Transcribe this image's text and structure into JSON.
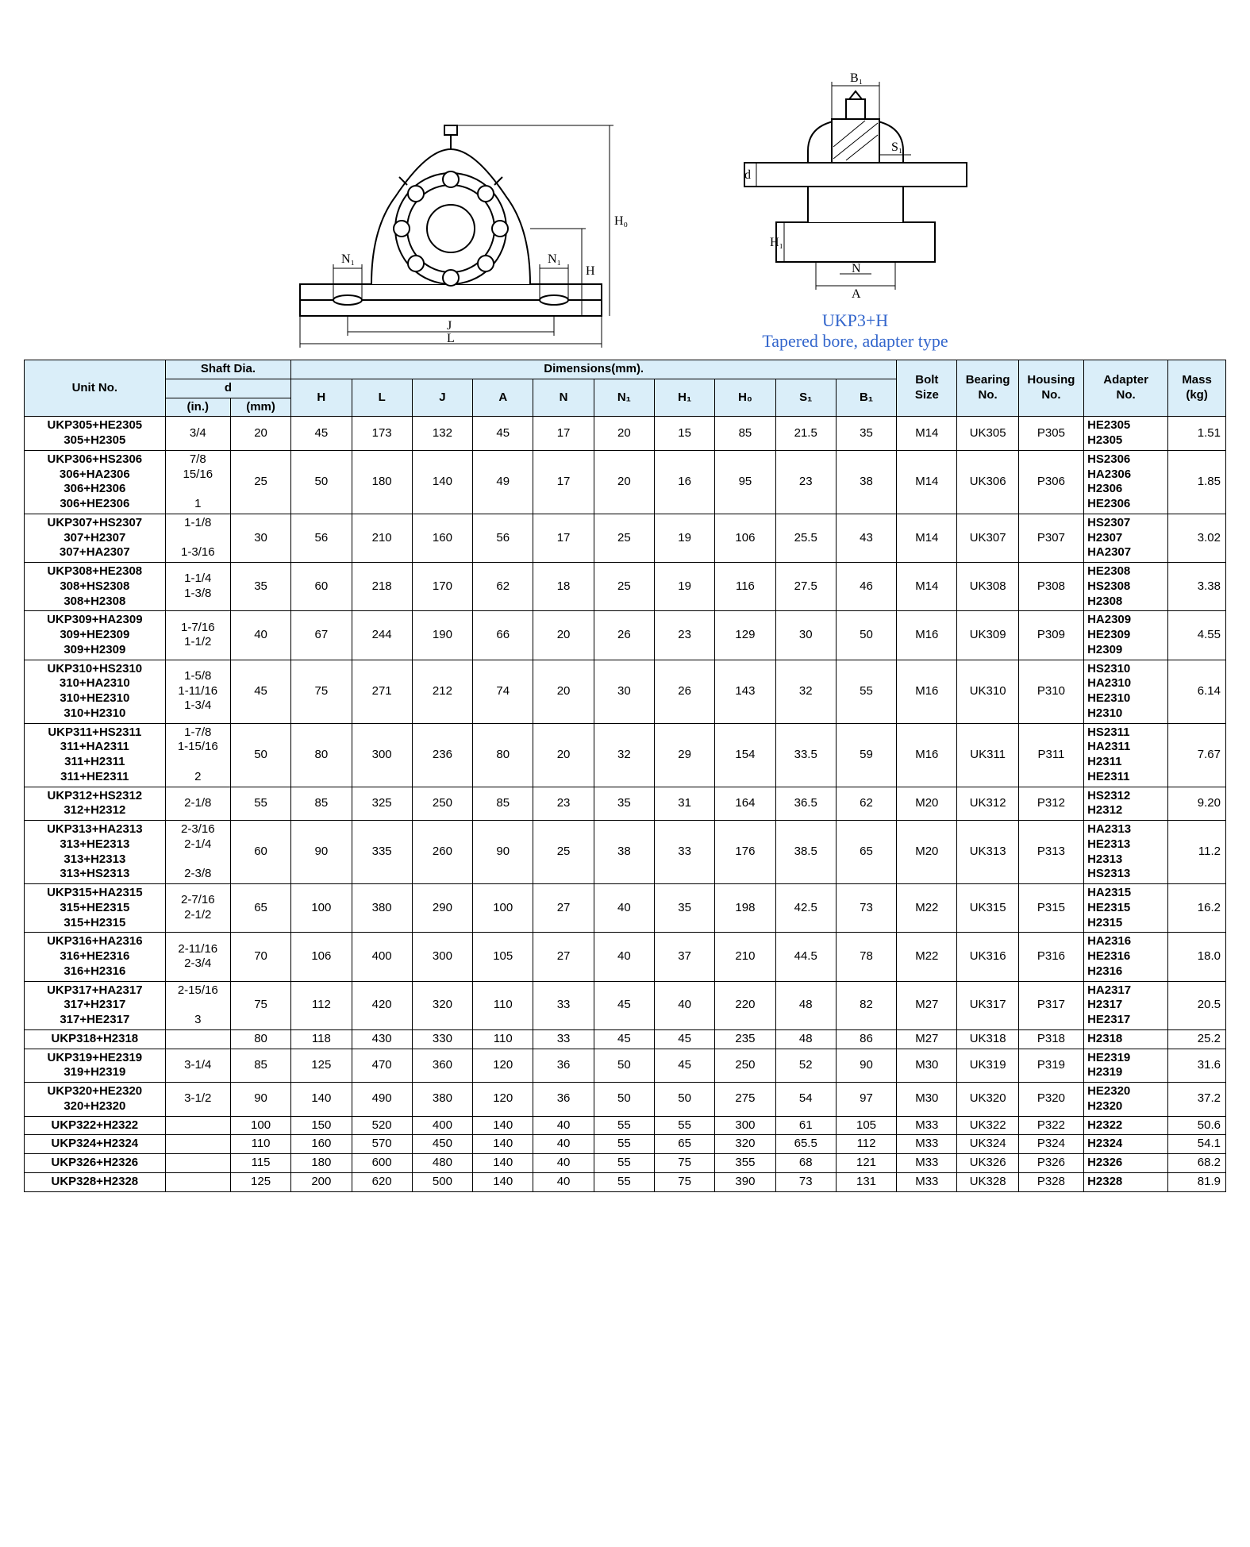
{
  "caption_line1": "UKP3+H",
  "caption_line2": "Tapered bore, adapter type",
  "caption_color": "#3366cc",
  "header_bg": "#daeef9",
  "headers": {
    "unit": "Unit No.",
    "shaft": "Shaft Dia.",
    "d": "d",
    "in": "(in.)",
    "mm": "(mm)",
    "dims": "Dimensions(mm).",
    "H": "H",
    "L": "L",
    "J": "J",
    "A": "A",
    "N": "N",
    "N1": "N₁",
    "H1": "H₁",
    "Ho": "H₀",
    "S1": "S₁",
    "B1": "B₁",
    "bolt": "Bolt\nSize",
    "bearing": "Bearing\nNo.",
    "housing": "Housing\nNo.",
    "adapter": "Adapter\nNo.",
    "mass": "Mass\n(kg)"
  },
  "rows": [
    {
      "unit": "UKP305+HE2305\n305+H2305",
      "in": "3/4",
      "mm": "20",
      "H": "45",
      "L": "173",
      "J": "132",
      "A": "45",
      "N": "17",
      "N1": "20",
      "H1": "15",
      "Ho": "85",
      "S1": "21.5",
      "B1": "35",
      "bolt": "M14",
      "bearing": "UK305",
      "housing": "P305",
      "adapter": "HE2305\nH2305",
      "mass": "1.51"
    },
    {
      "unit": "UKP306+HS2306\n306+HA2306\n306+H2306\n306+HE2306",
      "in": "7/8\n15/16\n\n1",
      "mm": "25",
      "H": "50",
      "L": "180",
      "J": "140",
      "A": "49",
      "N": "17",
      "N1": "20",
      "H1": "16",
      "Ho": "95",
      "S1": "23",
      "B1": "38",
      "bolt": "M14",
      "bearing": "UK306",
      "housing": "P306",
      "adapter": "HS2306\nHA2306\nH2306\nHE2306",
      "mass": "1.85"
    },
    {
      "unit": "UKP307+HS2307\n307+H2307\n307+HA2307",
      "in": "1-1/8\n\n1-3/16",
      "mm": "30",
      "H": "56",
      "L": "210",
      "J": "160",
      "A": "56",
      "N": "17",
      "N1": "25",
      "H1": "19",
      "Ho": "106",
      "S1": "25.5",
      "B1": "43",
      "bolt": "M14",
      "bearing": "UK307",
      "housing": "P307",
      "adapter": "HS2307\nH2307\nHA2307",
      "mass": "3.02"
    },
    {
      "unit": "UKP308+HE2308\n308+HS2308\n308+H2308",
      "in": "1-1/4\n1-3/8",
      "mm": "35",
      "H": "60",
      "L": "218",
      "J": "170",
      "A": "62",
      "N": "18",
      "N1": "25",
      "H1": "19",
      "Ho": "116",
      "S1": "27.5",
      "B1": "46",
      "bolt": "M14",
      "bearing": "UK308",
      "housing": "P308",
      "adapter": "HE2308\nHS2308\nH2308",
      "mass": "3.38"
    },
    {
      "unit": "UKP309+HA2309\n309+HE2309\n309+H2309",
      "in": "1-7/16\n1-1/2",
      "mm": "40",
      "H": "67",
      "L": "244",
      "J": "190",
      "A": "66",
      "N": "20",
      "N1": "26",
      "H1": "23",
      "Ho": "129",
      "S1": "30",
      "B1": "50",
      "bolt": "M16",
      "bearing": "UK309",
      "housing": "P309",
      "adapter": "HA2309\nHE2309\nH2309",
      "mass": "4.55"
    },
    {
      "unit": "UKP310+HS2310\n310+HA2310\n310+HE2310\n310+H2310",
      "in": "1-5/8\n1-11/16\n1-3/4",
      "mm": "45",
      "H": "75",
      "L": "271",
      "J": "212",
      "A": "74",
      "N": "20",
      "N1": "30",
      "H1": "26",
      "Ho": "143",
      "S1": "32",
      "B1": "55",
      "bolt": "M16",
      "bearing": "UK310",
      "housing": "P310",
      "adapter": "HS2310\nHA2310\nHE2310\nH2310",
      "mass": "6.14"
    },
    {
      "unit": "UKP311+HS2311\n311+HA2311\n311+H2311\n311+HE2311",
      "in": "1-7/8\n1-15/16\n\n2",
      "mm": "50",
      "H": "80",
      "L": "300",
      "J": "236",
      "A": "80",
      "N": "20",
      "N1": "32",
      "H1": "29",
      "Ho": "154",
      "S1": "33.5",
      "B1": "59",
      "bolt": "M16",
      "bearing": "UK311",
      "housing": "P311",
      "adapter": "HS2311\nHA2311\nH2311\nHE2311",
      "mass": "7.67"
    },
    {
      "unit": "UKP312+HS2312\n312+H2312",
      "in": "2-1/8",
      "mm": "55",
      "H": "85",
      "L": "325",
      "J": "250",
      "A": "85",
      "N": "23",
      "N1": "35",
      "H1": "31",
      "Ho": "164",
      "S1": "36.5",
      "B1": "62",
      "bolt": "M20",
      "bearing": "UK312",
      "housing": "P312",
      "adapter": "HS2312\nH2312",
      "mass": "9.20"
    },
    {
      "unit": "UKP313+HA2313\n313+HE2313\n313+H2313\n313+HS2313",
      "in": "2-3/16\n2-1/4\n\n2-3/8",
      "mm": "60",
      "H": "90",
      "L": "335",
      "J": "260",
      "A": "90",
      "N": "25",
      "N1": "38",
      "H1": "33",
      "Ho": "176",
      "S1": "38.5",
      "B1": "65",
      "bolt": "M20",
      "bearing": "UK313",
      "housing": "P313",
      "adapter": "HA2313\nHE2313\nH2313\nHS2313",
      "mass": "11.2"
    },
    {
      "unit": "UKP315+HA2315\n315+HE2315\n315+H2315",
      "in": "2-7/16\n2-1/2",
      "mm": "65",
      "H": "100",
      "L": "380",
      "J": "290",
      "A": "100",
      "N": "27",
      "N1": "40",
      "H1": "35",
      "Ho": "198",
      "S1": "42.5",
      "B1": "73",
      "bolt": "M22",
      "bearing": "UK315",
      "housing": "P315",
      "adapter": "HA2315\nHE2315\nH2315",
      "mass": "16.2"
    },
    {
      "unit": "UKP316+HA2316\n316+HE2316\n316+H2316",
      "in": "2-11/16\n2-3/4",
      "mm": "70",
      "H": "106",
      "L": "400",
      "J": "300",
      "A": "105",
      "N": "27",
      "N1": "40",
      "H1": "37",
      "Ho": "210",
      "S1": "44.5",
      "B1": "78",
      "bolt": "M22",
      "bearing": "UK316",
      "housing": "P316",
      "adapter": "HA2316\nHE2316\nH2316",
      "mass": "18.0"
    },
    {
      "unit": "UKP317+HA2317\n317+H2317\n317+HE2317",
      "in": "2-15/16\n\n3",
      "mm": "75",
      "H": "112",
      "L": "420",
      "J": "320",
      "A": "110",
      "N": "33",
      "N1": "45",
      "H1": "40",
      "Ho": "220",
      "S1": "48",
      "B1": "82",
      "bolt": "M27",
      "bearing": "UK317",
      "housing": "P317",
      "adapter": "HA2317\nH2317\nHE2317",
      "mass": "20.5"
    },
    {
      "unit": "UKP318+H2318",
      "in": "",
      "mm": "80",
      "H": "118",
      "L": "430",
      "J": "330",
      "A": "110",
      "N": "33",
      "N1": "45",
      "H1": "45",
      "Ho": "235",
      "S1": "48",
      "B1": "86",
      "bolt": "M27",
      "bearing": "UK318",
      "housing": "P318",
      "adapter": "H2318",
      "mass": "25.2"
    },
    {
      "unit": "UKP319+HE2319\n319+H2319",
      "in": "3-1/4",
      "mm": "85",
      "H": "125",
      "L": "470",
      "J": "360",
      "A": "120",
      "N": "36",
      "N1": "50",
      "H1": "45",
      "Ho": "250",
      "S1": "52",
      "B1": "90",
      "bolt": "M30",
      "bearing": "UK319",
      "housing": "P319",
      "adapter": "HE2319\nH2319",
      "mass": "31.6"
    },
    {
      "unit": "UKP320+HE2320\n320+H2320",
      "in": "3-1/2",
      "mm": "90",
      "H": "140",
      "L": "490",
      "J": "380",
      "A": "120",
      "N": "36",
      "N1": "50",
      "H1": "50",
      "Ho": "275",
      "S1": "54",
      "B1": "97",
      "bolt": "M30",
      "bearing": "UK320",
      "housing": "P320",
      "adapter": "HE2320\nH2320",
      "mass": "37.2"
    },
    {
      "unit": "UKP322+H2322",
      "in": "",
      "mm": "100",
      "H": "150",
      "L": "520",
      "J": "400",
      "A": "140",
      "N": "40",
      "N1": "55",
      "H1": "55",
      "Ho": "300",
      "S1": "61",
      "B1": "105",
      "bolt": "M33",
      "bearing": "UK322",
      "housing": "P322",
      "adapter": "H2322",
      "mass": "50.6"
    },
    {
      "unit": "UKP324+H2324",
      "in": "",
      "mm": "110",
      "H": "160",
      "L": "570",
      "J": "450",
      "A": "140",
      "N": "40",
      "N1": "55",
      "H1": "65",
      "Ho": "320",
      "S1": "65.5",
      "B1": "112",
      "bolt": "M33",
      "bearing": "UK324",
      "housing": "P324",
      "adapter": "H2324",
      "mass": "54.1"
    },
    {
      "unit": "UKP326+H2326",
      "in": "",
      "mm": "115",
      "H": "180",
      "L": "600",
      "J": "480",
      "A": "140",
      "N": "40",
      "N1": "55",
      "H1": "75",
      "Ho": "355",
      "S1": "68",
      "B1": "121",
      "bolt": "M33",
      "bearing": "UK326",
      "housing": "P326",
      "adapter": "H2326",
      "mass": "68.2"
    },
    {
      "unit": "UKP328+H2328",
      "in": "",
      "mm": "125",
      "H": "200",
      "L": "620",
      "J": "500",
      "A": "140",
      "N": "40",
      "N1": "55",
      "H1": "75",
      "Ho": "390",
      "S1": "73",
      "B1": "131",
      "bolt": "M33",
      "bearing": "UK328",
      "housing": "P328",
      "adapter": "H2328",
      "mass": "81.9"
    }
  ]
}
